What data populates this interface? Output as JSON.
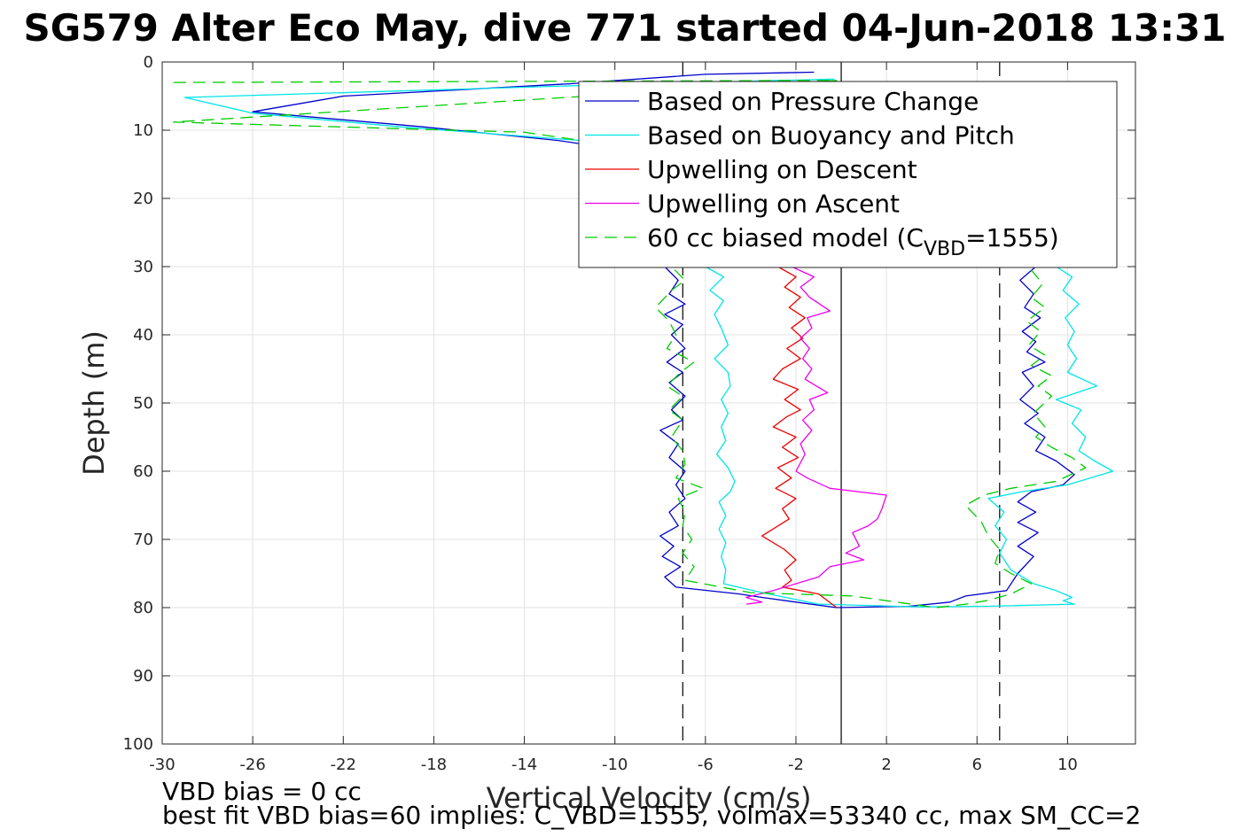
{
  "chart_data": {
    "type": "line",
    "title": "SG579 Alter Eco May, dive 771 started 04-Jun-2018 13:31",
    "xlabel": "Vertical Velocity (cm/s)",
    "ylabel": "Depth (m)",
    "xlim": [
      -30,
      13
    ],
    "ylim": [
      0,
      100
    ],
    "y_reversed": true,
    "grid": true,
    "x_ticks": [
      -30,
      -26,
      -22,
      -18,
      -14,
      -10,
      -6,
      -2,
      2,
      6,
      10
    ],
    "y_ticks": [
      0,
      10,
      20,
      30,
      40,
      50,
      60,
      70,
      80,
      90,
      100
    ],
    "legend_position": "top-right",
    "reference_lines": [
      {
        "x": -7,
        "style": "dashed",
        "color": "#000000"
      },
      {
        "x": 0,
        "style": "solid",
        "color": "#000000"
      },
      {
        "x": 7,
        "style": "dashed",
        "color": "#000000"
      }
    ],
    "series": [
      {
        "name": "Based on Pressure Change",
        "color": "#0000cc",
        "style": "solid",
        "points": [
          [
            -1.2,
            1.5
          ],
          [
            -6.0,
            1.8
          ],
          [
            -12.0,
            3.2
          ],
          [
            -22.0,
            5.0
          ],
          [
            -26.0,
            7.3
          ],
          [
            -18.5,
            9.5
          ],
          [
            -12.5,
            11.5
          ],
          [
            -9.5,
            13.0
          ],
          [
            -7.8,
            30.0
          ],
          [
            -7.2,
            32.0
          ],
          [
            -7.6,
            34.0
          ],
          [
            -6.9,
            35.5
          ],
          [
            -7.8,
            37.0
          ],
          [
            -7.0,
            38.5
          ],
          [
            -7.5,
            40.0
          ],
          [
            -6.9,
            42.0
          ],
          [
            -7.7,
            44.0
          ],
          [
            -7.0,
            45.5
          ],
          [
            -7.6,
            47.0
          ],
          [
            -6.9,
            49.0
          ],
          [
            -7.5,
            51.0
          ],
          [
            -7.0,
            52.5
          ],
          [
            -8.0,
            54.0
          ],
          [
            -7.2,
            56.0
          ],
          [
            -7.6,
            58.0
          ],
          [
            -6.9,
            60.0
          ],
          [
            -7.3,
            62.0
          ],
          [
            -6.9,
            64.0
          ],
          [
            -7.6,
            66.0
          ],
          [
            -7.2,
            68.0
          ],
          [
            -8.0,
            69.5
          ],
          [
            -7.4,
            71.0
          ],
          [
            -7.9,
            72.5
          ],
          [
            -7.1,
            74.0
          ],
          [
            -7.8,
            75.5
          ],
          [
            -7.3,
            77.0
          ],
          [
            -4.5,
            78.0
          ],
          [
            -3.5,
            78.5
          ],
          [
            -2.0,
            79.2
          ],
          [
            -0.2,
            80.0
          ],
          [
            3.0,
            79.8
          ],
          [
            4.8,
            79.2
          ],
          [
            5.5,
            78.3
          ],
          [
            7.3,
            77.5
          ],
          [
            7.8,
            75.0
          ],
          [
            8.5,
            72.5
          ],
          [
            7.8,
            71.0
          ],
          [
            8.7,
            69.0
          ],
          [
            7.8,
            67.5
          ],
          [
            8.6,
            66.0
          ],
          [
            7.8,
            64.5
          ],
          [
            8.4,
            63.0
          ],
          [
            9.8,
            62.0
          ],
          [
            10.3,
            60.5
          ],
          [
            9.5,
            58.5
          ],
          [
            8.6,
            57.0
          ],
          [
            9.0,
            55.0
          ],
          [
            8.1,
            53.0
          ],
          [
            8.7,
            51.5
          ],
          [
            7.9,
            49.5
          ],
          [
            8.5,
            47.5
          ],
          [
            8.0,
            45.5
          ],
          [
            9.0,
            44.0
          ],
          [
            8.2,
            42.5
          ],
          [
            8.6,
            41.0
          ],
          [
            8.0,
            39.5
          ],
          [
            8.8,
            37.5
          ],
          [
            8.1,
            36.0
          ],
          [
            8.5,
            34.0
          ],
          [
            7.9,
            32.0
          ],
          [
            8.6,
            30.0
          ]
        ]
      },
      {
        "name": "Based on Buoyancy and Pitch",
        "color": "#00e5e5",
        "style": "solid",
        "points": [
          [
            -0.3,
            2.5
          ],
          [
            -10.0,
            3.3
          ],
          [
            -29.0,
            5.2
          ],
          [
            -26.0,
            7.5
          ],
          [
            -19.5,
            9.5
          ],
          [
            -11.5,
            11.5
          ],
          [
            -10.5,
            12.5
          ],
          [
            -6.0,
            30.0
          ],
          [
            -5.2,
            31.5
          ],
          [
            -5.8,
            33.5
          ],
          [
            -5.2,
            35.0
          ],
          [
            -5.6,
            37.0
          ],
          [
            -5.3,
            39.0
          ],
          [
            -5.0,
            41.5
          ],
          [
            -5.6,
            43.5
          ],
          [
            -5.0,
            45.5
          ],
          [
            -4.9,
            47.5
          ],
          [
            -5.3,
            49.5
          ],
          [
            -5.0,
            51.5
          ],
          [
            -5.3,
            53.5
          ],
          [
            -5.1,
            55.5
          ],
          [
            -5.5,
            57.5
          ],
          [
            -5.0,
            59.5
          ],
          [
            -4.7,
            61.5
          ],
          [
            -4.9,
            63.0
          ],
          [
            -5.4,
            64.5
          ],
          [
            -5.1,
            66.5
          ],
          [
            -5.4,
            68.5
          ],
          [
            -5.1,
            70.5
          ],
          [
            -5.3,
            72.5
          ],
          [
            -5.1,
            74.5
          ],
          [
            -5.2,
            76.5
          ],
          [
            -3.5,
            77.8
          ],
          [
            -1.0,
            79.5
          ],
          [
            3.5,
            79.9
          ],
          [
            6.5,
            79.8
          ],
          [
            10.3,
            79.5
          ],
          [
            9.8,
            79.0
          ],
          [
            10.2,
            78.5
          ],
          [
            9.5,
            77.5
          ],
          [
            8.5,
            76.5
          ],
          [
            7.5,
            74.5
          ],
          [
            7.0,
            72.0
          ],
          [
            7.3,
            70.0
          ],
          [
            6.8,
            68.0
          ],
          [
            7.2,
            66.0
          ],
          [
            6.5,
            64.0
          ],
          [
            8.0,
            63.0
          ],
          [
            10.0,
            62.0
          ],
          [
            12.0,
            60.0
          ],
          [
            11.2,
            58.5
          ],
          [
            10.5,
            57.0
          ],
          [
            10.8,
            55.0
          ],
          [
            10.2,
            53.0
          ],
          [
            10.6,
            51.0
          ],
          [
            9.5,
            49.5
          ],
          [
            11.3,
            47.5
          ],
          [
            10.0,
            45.5
          ],
          [
            10.4,
            43.5
          ],
          [
            10.0,
            41.5
          ],
          [
            10.3,
            39.5
          ],
          [
            9.9,
            37.5
          ],
          [
            10.5,
            35.5
          ],
          [
            9.8,
            33.5
          ],
          [
            10.2,
            31.5
          ],
          [
            9.5,
            30.0
          ]
        ]
      },
      {
        "name": "Upwelling on Descent",
        "color": "#ee0000",
        "style": "solid",
        "points": [
          [
            -2.8,
            30.0
          ],
          [
            -2.0,
            31.5
          ],
          [
            -2.5,
            33.0
          ],
          [
            -1.8,
            34.5
          ],
          [
            -2.3,
            36.0
          ],
          [
            -1.6,
            37.5
          ],
          [
            -2.2,
            39.0
          ],
          [
            -1.7,
            40.5
          ],
          [
            -2.4,
            42.0
          ],
          [
            -1.8,
            43.5
          ],
          [
            -2.6,
            45.0
          ],
          [
            -3.0,
            46.5
          ],
          [
            -1.9,
            48.0
          ],
          [
            -2.5,
            49.5
          ],
          [
            -1.8,
            51.0
          ],
          [
            -2.4,
            52.0
          ],
          [
            -3.0,
            53.5
          ],
          [
            -2.0,
            55.0
          ],
          [
            -2.6,
            56.5
          ],
          [
            -1.9,
            58.0
          ],
          [
            -2.8,
            59.5
          ],
          [
            -2.2,
            61.0
          ],
          [
            -2.9,
            62.5
          ],
          [
            -2.0,
            64.0
          ],
          [
            -2.6,
            65.5
          ],
          [
            -2.3,
            67.0
          ],
          [
            -3.5,
            69.5
          ],
          [
            -2.5,
            71.5
          ],
          [
            -2.0,
            73.0
          ],
          [
            -2.5,
            74.5
          ],
          [
            -2.2,
            76.0
          ],
          [
            -2.6,
            77.0
          ],
          [
            -1.0,
            78.0
          ],
          [
            -0.2,
            80.0
          ]
        ]
      },
      {
        "name": "Upwelling on Ascent",
        "color": "#ee00ee",
        "style": "solid",
        "points": [
          [
            -2.2,
            30.0
          ],
          [
            -1.2,
            31.5
          ],
          [
            -1.8,
            33.0
          ],
          [
            -1.4,
            34.5
          ],
          [
            -0.5,
            36.5
          ],
          [
            -1.5,
            37.5
          ],
          [
            -1.3,
            39.0
          ],
          [
            -1.8,
            40.5
          ],
          [
            -1.4,
            42.0
          ],
          [
            -1.7,
            43.5
          ],
          [
            -1.3,
            45.0
          ],
          [
            -1.6,
            46.5
          ],
          [
            -0.6,
            48.5
          ],
          [
            -1.4,
            49.5
          ],
          [
            -1.2,
            51.0
          ],
          [
            -1.7,
            52.5
          ],
          [
            -1.3,
            54.0
          ],
          [
            -1.8,
            56.0
          ],
          [
            -1.6,
            57.5
          ],
          [
            -2.0,
            60.0
          ],
          [
            -1.5,
            61.0
          ],
          [
            -0.5,
            62.5
          ],
          [
            2.0,
            63.5
          ],
          [
            1.8,
            65.5
          ],
          [
            1.6,
            67.0
          ],
          [
            1.2,
            68.0
          ],
          [
            0.5,
            69.0
          ],
          [
            0.8,
            71.0
          ],
          [
            0.2,
            72.0
          ],
          [
            1.0,
            73.0
          ],
          [
            -0.5,
            74.0
          ],
          [
            -1.0,
            75.5
          ],
          [
            -2.0,
            76.5
          ],
          [
            -3.0,
            77.5
          ],
          [
            -4.2,
            78.5
          ],
          [
            -3.5,
            79.2
          ],
          [
            -4.2,
            79.5
          ]
        ]
      },
      {
        "name": "60 cc biased model (C_VBD=1555)",
        "legend_label": "60 cc biased model (C",
        "legend_label_sub": "VBD",
        "legend_label_tail": "=1555)",
        "color": "#00cc00",
        "style": "dashed",
        "points": [
          [
            -29.5,
            3.0
          ],
          [
            -0.2,
            2.7
          ],
          [
            -29.5,
            8.8
          ],
          [
            -14.0,
            10.3
          ],
          [
            -11.5,
            11.5
          ],
          [
            -9.5,
            13.0
          ],
          [
            -7.5,
            30.0
          ],
          [
            -6.9,
            32.0
          ],
          [
            -7.5,
            33.5
          ],
          [
            -8.2,
            36.0
          ],
          [
            -7.6,
            38.0
          ],
          [
            -7.3,
            40.0
          ],
          [
            -7.7,
            42.0
          ],
          [
            -6.5,
            44.0
          ],
          [
            -7.1,
            45.5
          ],
          [
            -7.7,
            47.5
          ],
          [
            -7.0,
            49.0
          ],
          [
            -7.6,
            51.0
          ],
          [
            -7.0,
            52.5
          ],
          [
            -7.5,
            55.0
          ],
          [
            -7.0,
            57.0
          ],
          [
            -6.9,
            59.0
          ],
          [
            -7.3,
            61.0
          ],
          [
            -6.1,
            62.5
          ],
          [
            -7.2,
            64.0
          ],
          [
            -6.9,
            66.0
          ],
          [
            -7.0,
            68.0
          ],
          [
            -6.6,
            70.0
          ],
          [
            -7.0,
            72.0
          ],
          [
            -6.5,
            74.0
          ],
          [
            -6.9,
            76.0
          ],
          [
            -4.0,
            77.8
          ],
          [
            0.5,
            78.3
          ],
          [
            4.2,
            80.0
          ],
          [
            5.5,
            79.5
          ],
          [
            6.4,
            79.0
          ],
          [
            7.5,
            78.0
          ],
          [
            8.4,
            76.5
          ],
          [
            7.5,
            75.0
          ],
          [
            6.8,
            73.5
          ],
          [
            7.0,
            71.5
          ],
          [
            6.5,
            69.5
          ],
          [
            6.2,
            67.5
          ],
          [
            5.5,
            65.0
          ],
          [
            6.3,
            63.5
          ],
          [
            7.5,
            62.5
          ],
          [
            9.5,
            61.5
          ],
          [
            10.8,
            59.5
          ],
          [
            10.2,
            58.0
          ],
          [
            9.3,
            56.5
          ],
          [
            8.6,
            55.0
          ],
          [
            9.0,
            53.5
          ],
          [
            8.5,
            51.5
          ],
          [
            9.3,
            49.0
          ],
          [
            8.7,
            47.5
          ],
          [
            9.3,
            46.0
          ],
          [
            8.4,
            44.5
          ],
          [
            9.0,
            43.0
          ],
          [
            8.3,
            41.5
          ],
          [
            8.8,
            39.5
          ],
          [
            8.2,
            38.0
          ],
          [
            9.0,
            36.0
          ],
          [
            8.4,
            34.5
          ],
          [
            8.9,
            32.5
          ],
          [
            8.4,
            30.5
          ]
        ]
      }
    ],
    "notes": [
      "VBD bias = 0 cc",
      "best fit VBD bias=60 implies: C_VBD=1555, volmax=53340 cc, max SM_CC=2"
    ]
  }
}
